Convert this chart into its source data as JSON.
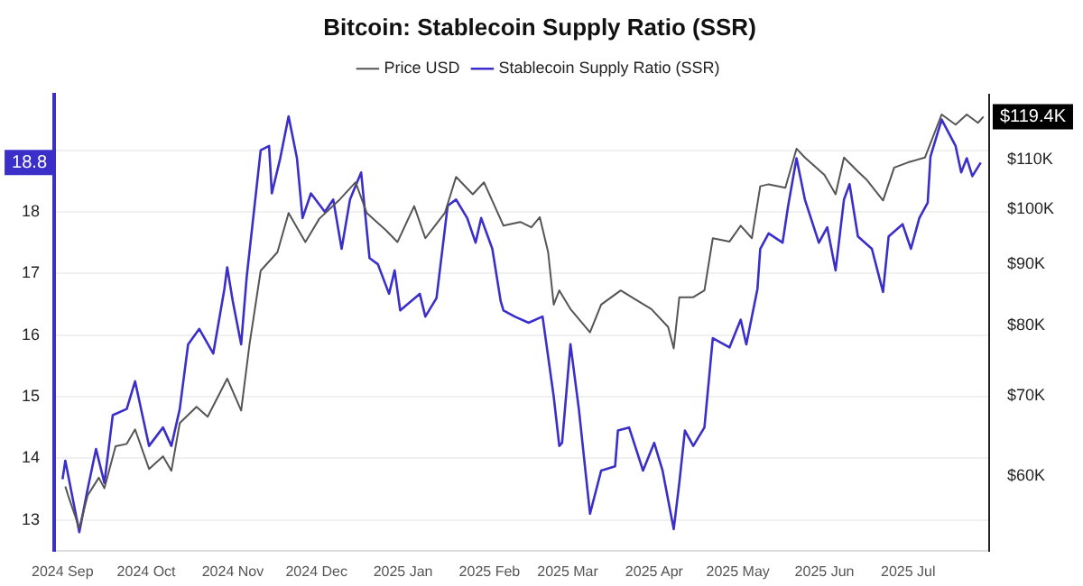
{
  "chart_data": {
    "type": "line",
    "title": "Bitcoin: Stablecoin Supply Ratio (SSR)",
    "legend": "top",
    "grid": "y",
    "marker": "none",
    "line_style": "solid",
    "log": "y2",
    "annotations": [
      "$119.4K",
      "18.8"
    ],
    "xlim": [
      "2024-08-29",
      "2025-07-30"
    ],
    "xticks": [
      {
        "value": "2024-09-01",
        "label": "2024 Sep"
      },
      {
        "value": "2024-10-01",
        "label": "2024 Oct"
      },
      {
        "value": "2024-11-01",
        "label": "2024 Nov"
      },
      {
        "value": "2024-12-01",
        "label": "2024 Dec"
      },
      {
        "value": "2025-01-01",
        "label": "2025 Jan"
      },
      {
        "value": "2025-02-01",
        "label": "2025 Feb"
      },
      {
        "value": "2025-03-01",
        "label": "2025 Mar"
      },
      {
        "value": "2025-04-01",
        "label": "2025 Apr"
      },
      {
        "value": "2025-05-01",
        "label": "2025 May"
      },
      {
        "value": "2025-06-01",
        "label": "2025 Jun"
      },
      {
        "value": "2025-07-01",
        "label": "2025 Jul"
      }
    ],
    "ylim": [
      12.5,
      19.9
    ],
    "yticks": [
      13,
      14,
      15,
      16,
      17,
      18,
      {
        "value": 19,
        "label": null
      }
    ],
    "y2lim": [
      52000,
      124500
    ],
    "y2ticks": [
      {
        "value": 60000,
        "label": "$60K"
      },
      {
        "value": 70000,
        "label": "$70K"
      },
      {
        "value": 80000,
        "label": "$80K"
      },
      {
        "value": 90000,
        "label": "$90K"
      },
      {
        "value": 100000,
        "label": "$100K"
      },
      {
        "value": 110000,
        "label": "$110K"
      }
    ],
    "series": [
      {
        "name": "Price USD",
        "color": "#555555",
        "axis": "y2",
        "x": [
          "2024-09-02",
          "2024-09-03",
          "2024-09-07",
          "2024-09-10",
          "2024-09-14",
          "2024-09-16",
          "2024-09-20",
          "2024-09-24",
          "2024-09-27",
          "2024-10-02",
          "2024-10-07",
          "2024-10-10",
          "2024-10-13",
          "2024-10-19",
          "2024-10-23",
          "2024-10-30",
          "2024-11-04",
          "2024-11-07",
          "2024-11-11",
          "2024-11-17",
          "2024-11-21",
          "2024-11-27",
          "2024-12-02",
          "2024-12-09",
          "2024-12-15",
          "2024-12-19",
          "2024-12-26",
          "2024-12-30",
          "2025-01-05",
          "2025-01-09",
          "2025-01-16",
          "2025-01-20",
          "2025-01-26",
          "2025-01-30",
          "2025-02-06",
          "2025-02-12",
          "2025-02-16",
          "2025-02-19",
          "2025-02-22",
          "2025-02-24",
          "2025-02-26",
          "2025-03-02",
          "2025-03-09",
          "2025-03-13",
          "2025-03-20",
          "2025-03-25",
          "2025-03-31",
          "2025-04-06",
          "2025-04-08",
          "2025-04-10",
          "2025-04-15",
          "2025-04-19",
          "2025-04-22",
          "2025-04-28",
          "2025-05-02",
          "2025-05-06",
          "2025-05-09",
          "2025-05-12",
          "2025-05-18",
          "2025-05-22",
          "2025-05-25",
          "2025-06-01",
          "2025-06-05",
          "2025-06-08",
          "2025-06-13",
          "2025-06-16",
          "2025-06-22",
          "2025-06-26",
          "2025-07-01",
          "2025-07-07",
          "2025-07-13",
          "2025-07-18",
          "2025-07-22",
          "2025-07-26",
          "2025-07-28"
        ],
        "values": [
          58800,
          57800,
          54300,
          57800,
          59800,
          58600,
          63500,
          63800,
          65600,
          60800,
          62300,
          60600,
          66400,
          68500,
          67200,
          72300,
          68000,
          77200,
          88900,
          92100,
          99300,
          93900,
          98200,
          101700,
          105300,
          99300,
          96000,
          93900,
          100600,
          94600,
          99300,
          106400,
          102900,
          105300,
          96900,
          97600,
          96600,
          98500,
          92100,
          83300,
          85600,
          82600,
          79000,
          83300,
          85600,
          84200,
          82600,
          79800,
          76600,
          84500,
          84500,
          85600,
          94600,
          94000,
          96900,
          94600,
          104500,
          104900,
          104200,
          112300,
          110400,
          106800,
          102900,
          110400,
          107500,
          105900,
          101700,
          108300,
          109400,
          110400,
          119900,
          117600,
          119900,
          118000,
          119400
        ]
      },
      {
        "name": "Stablecoin Supply Ratio (SSR)",
        "color": "#3b2fc9",
        "axis": "y",
        "x": [
          "2024-09-01",
          "2024-09-02",
          "2024-09-07",
          "2024-09-10",
          "2024-09-13",
          "2024-09-16",
          "2024-09-19",
          "2024-09-24",
          "2024-09-27",
          "2024-10-02",
          "2024-10-07",
          "2024-10-10",
          "2024-10-13",
          "2024-10-16",
          "2024-10-20",
          "2024-10-25",
          "2024-10-29",
          "2024-10-30",
          "2024-11-01",
          "2024-11-04",
          "2024-11-06",
          "2024-11-11",
          "2024-11-14",
          "2024-11-15",
          "2024-11-18",
          "2024-11-21",
          "2024-11-24",
          "2024-11-26",
          "2024-11-29",
          "2024-12-04",
          "2024-12-07",
          "2024-12-10",
          "2024-12-13",
          "2024-12-17",
          "2024-12-20",
          "2024-12-23",
          "2024-12-27",
          "2024-12-29",
          "2024-12-31",
          "2025-01-07",
          "2025-01-09",
          "2025-01-13",
          "2025-01-17",
          "2025-01-20",
          "2025-01-24",
          "2025-01-27",
          "2025-01-29",
          "2025-02-02",
          "2025-02-05",
          "2025-02-06",
          "2025-02-10",
          "2025-02-15",
          "2025-02-20",
          "2025-02-24",
          "2025-02-26",
          "2025-02-27",
          "2025-03-02",
          "2025-03-05",
          "2025-03-09",
          "2025-03-13",
          "2025-03-18",
          "2025-03-19",
          "2025-03-23",
          "2025-03-28",
          "2025-04-01",
          "2025-04-04",
          "2025-04-08",
          "2025-04-10",
          "2025-04-12",
          "2025-04-15",
          "2025-04-19",
          "2025-04-22",
          "2025-04-28",
          "2025-05-02",
          "2025-05-04",
          "2025-05-08",
          "2025-05-09",
          "2025-05-12",
          "2025-05-17",
          "2025-05-19",
          "2025-05-22",
          "2025-05-25",
          "2025-05-30",
          "2025-06-02",
          "2025-06-05",
          "2025-06-08",
          "2025-06-10",
          "2025-06-13",
          "2025-06-18",
          "2025-06-22",
          "2025-06-24",
          "2025-06-29",
          "2025-07-02",
          "2025-07-05",
          "2025-07-08",
          "2025-07-09",
          "2025-07-13",
          "2025-07-18",
          "2025-07-20",
          "2025-07-22",
          "2025-07-24",
          "2025-07-27"
        ],
        "values": [
          13.66,
          13.96,
          12.8,
          13.5,
          14.15,
          13.6,
          14.7,
          14.8,
          15.25,
          14.2,
          14.5,
          14.2,
          14.8,
          15.85,
          16.1,
          15.7,
          16.75,
          17.1,
          16.55,
          15.85,
          16.95,
          19.0,
          19.07,
          18.3,
          18.87,
          19.55,
          18.87,
          17.9,
          18.3,
          18.0,
          18.2,
          17.4,
          18.2,
          18.64,
          17.25,
          17.15,
          16.67,
          17.05,
          16.4,
          16.67,
          16.3,
          16.6,
          18.1,
          18.2,
          17.9,
          17.5,
          17.9,
          17.4,
          16.55,
          16.4,
          16.3,
          16.2,
          16.3,
          15.0,
          14.2,
          14.25,
          15.85,
          14.8,
          13.1,
          13.8,
          13.87,
          14.45,
          14.5,
          13.8,
          14.25,
          13.8,
          12.85,
          13.6,
          14.45,
          14.2,
          14.5,
          15.95,
          15.8,
          16.25,
          15.85,
          16.75,
          17.4,
          17.65,
          17.5,
          18.1,
          18.87,
          18.2,
          17.5,
          17.75,
          17.05,
          18.2,
          18.45,
          17.6,
          17.4,
          16.7,
          17.6,
          17.8,
          17.4,
          17.9,
          18.15,
          18.9,
          19.5,
          19.07,
          18.64,
          18.87,
          18.58,
          18.8
        ]
      }
    ]
  }
}
